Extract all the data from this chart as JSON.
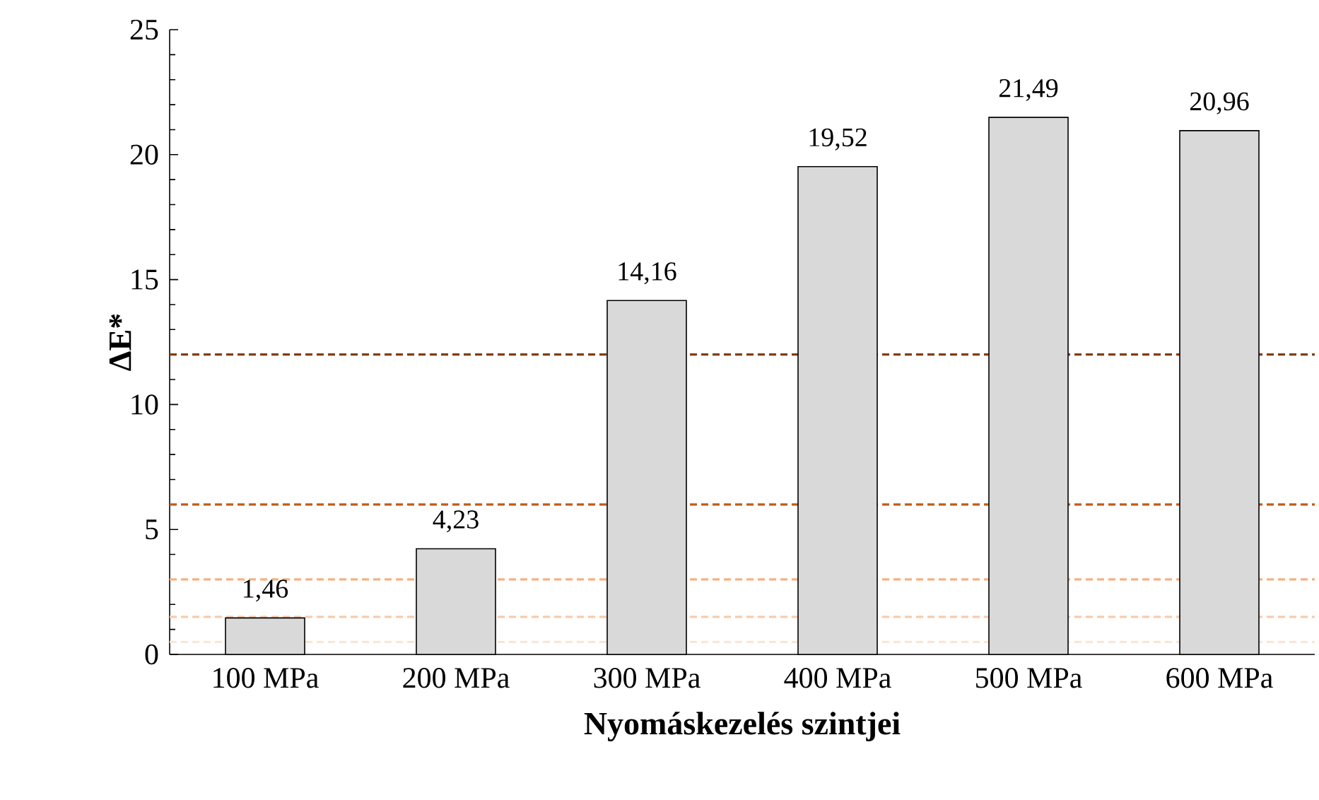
{
  "chart_data": {
    "type": "bar",
    "xlabel": "Nyomáskezelés szintjei",
    "ylabel": "ΔE*",
    "categories": [
      "100 MPa",
      "200 MPa",
      "300 MPa",
      "400 MPa",
      "500 MPa",
      "600 MPa"
    ],
    "values": [
      1.46,
      4.23,
      14.16,
      19.52,
      21.49,
      20.96
    ],
    "value_labels": [
      "1,46",
      "4,23",
      "14,16",
      "19,52",
      "21,49",
      "20,96"
    ],
    "color": "#d9d9d9",
    "ylim": [
      0,
      25
    ],
    "yticks": [
      0,
      5,
      10,
      15,
      20,
      25
    ],
    "grid": false,
    "ref_lines": [
      {
        "axis": "y",
        "value": 12,
        "color": "#843c0c",
        "line_style": "dashed"
      },
      {
        "axis": "y",
        "value": 6,
        "color": "#c55a11",
        "line_style": "dashed"
      },
      {
        "axis": "y",
        "value": 3,
        "color": "#f4b183",
        "line_style": "dashed"
      },
      {
        "axis": "y",
        "value": 1.5,
        "color": "#f8cbad",
        "line_style": "dashed"
      },
      {
        "axis": "y",
        "value": 0.5,
        "color": "#fbe5d6",
        "line_style": "dashed"
      }
    ]
  }
}
